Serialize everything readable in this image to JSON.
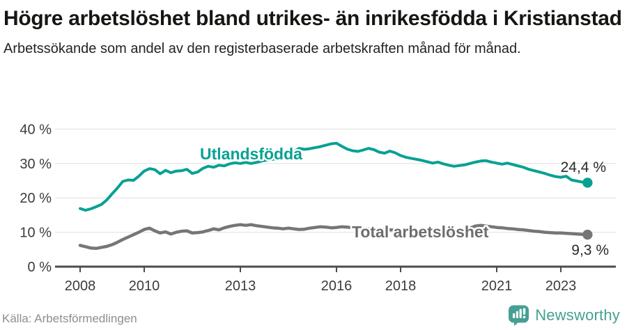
{
  "header": {
    "title": "Högre arbetslöshet bland utrikes- än inrikesfödda i Kristianstad",
    "subtitle": "Arbetssökande som andel av den registerbaserade arbetskraften månad för månad."
  },
  "footer": {
    "source": "Källa: Arbetsförmedlingen",
    "logo_text": "Newsworthy",
    "logo_icon": "newsworthy-speech-bubble-bar-chart-icon"
  },
  "colors": {
    "utlandsfodda_line": "#07a193",
    "total_line": "#767676",
    "logo_teal": "#469f93",
    "gridline": "#e0e0e0",
    "axis": "#4b4b4b",
    "axis_text": "#3c3c3c"
  },
  "chart_data": {
    "type": "line",
    "title": "Högre arbetslöshet bland utrikes- än inrikesfödda i Kristianstad",
    "subtitle": "Arbetssökande som andel av den registerbaserade arbetskraften månad för månad.",
    "grid": true,
    "legend_position": "inline-labels",
    "x_axis": {
      "unit": "year",
      "range_years": [
        2007.2,
        2024.7
      ],
      "ticks": [
        {
          "year": 2008,
          "label": "2008"
        },
        {
          "year": 2010,
          "label": "2010"
        },
        {
          "year": 2013,
          "label": "2013"
        },
        {
          "year": 2016,
          "label": "2016"
        },
        {
          "year": 2018,
          "label": "2018"
        },
        {
          "year": 2021,
          "label": "2021"
        },
        {
          "year": 2023,
          "label": "2023"
        }
      ]
    },
    "y_axis": {
      "unit": "%",
      "range": [
        0,
        42
      ],
      "ticks": [
        {
          "v": 0,
          "label": "0 %"
        },
        {
          "v": 10,
          "label": "10 %"
        },
        {
          "v": 20,
          "label": "20 %"
        },
        {
          "v": 30,
          "label": "30 %"
        },
        {
          "v": 40,
          "label": "40 %"
        }
      ]
    },
    "x_start_year": 2008,
    "x_step_years": 0.166667,
    "series": [
      {
        "name": "Utlandsfödda",
        "color": "#07a193",
        "end_label": "24,4 %",
        "end_value": 24.4,
        "values": [
          16.9,
          16.4,
          16.8,
          17.4,
          18.1,
          19.4,
          21.2,
          22.9,
          24.8,
          25.2,
          25.1,
          26.3,
          27.8,
          28.5,
          28.2,
          27.0,
          28.0,
          27.3,
          27.8,
          27.9,
          28.3,
          27.1,
          27.5,
          28.6,
          29.2,
          28.9,
          29.5,
          29.3,
          29.9,
          30.2,
          30.0,
          30.3,
          30.0,
          30.3,
          30.7,
          31.0,
          31.2,
          31.5,
          32.0,
          32.6,
          33.4,
          34.4,
          34.1,
          34.3,
          34.6,
          34.9,
          35.3,
          35.7,
          35.9,
          35.0,
          34.2,
          33.7,
          33.5,
          33.9,
          34.4,
          34.0,
          33.3,
          33.0,
          33.6,
          33.1,
          32.3,
          31.8,
          31.5,
          31.2,
          30.9,
          30.5,
          30.1,
          30.4,
          29.9,
          29.5,
          29.2,
          29.4,
          29.6,
          30.0,
          30.4,
          30.7,
          30.8,
          30.4,
          30.1,
          29.8,
          30.1,
          29.7,
          29.3,
          28.9,
          28.3,
          27.9,
          27.5,
          27.1,
          26.6,
          26.2,
          26.0,
          26.3,
          25.2,
          24.9,
          24.6,
          24.4
        ]
      },
      {
        "name": "Total arbetslöshet",
        "color": "#767676",
        "end_label": "9,3 %",
        "end_value": 9.3,
        "values": [
          6.2,
          5.8,
          5.4,
          5.3,
          5.6,
          5.9,
          6.4,
          7.1,
          7.9,
          8.6,
          9.3,
          10.0,
          10.8,
          11.2,
          10.4,
          9.8,
          10.1,
          9.5,
          10.0,
          10.3,
          10.4,
          9.8,
          9.9,
          10.1,
          10.5,
          11.0,
          10.7,
          11.3,
          11.7,
          12.0,
          12.2,
          12.0,
          12.2,
          11.9,
          11.7,
          11.5,
          11.3,
          11.2,
          11.0,
          11.2,
          11.0,
          10.8,
          10.9,
          11.2,
          11.4,
          11.6,
          11.5,
          11.3,
          11.4,
          11.6,
          11.5,
          11.3,
          11.2,
          11.1,
          11.0,
          10.9,
          10.8,
          10.8,
          10.7,
          10.6,
          10.6,
          10.5,
          10.4,
          10.3,
          10.2,
          10.1,
          10.0,
          9.9,
          9.9,
          9.8,
          9.9,
          10.1,
          10.5,
          11.2,
          11.8,
          12.0,
          11.8,
          11.6,
          11.4,
          11.3,
          11.1,
          11.0,
          10.8,
          10.7,
          10.5,
          10.3,
          10.2,
          10.0,
          9.9,
          9.8,
          9.8,
          9.7,
          9.6,
          9.5,
          9.4,
          9.3
        ]
      }
    ]
  }
}
